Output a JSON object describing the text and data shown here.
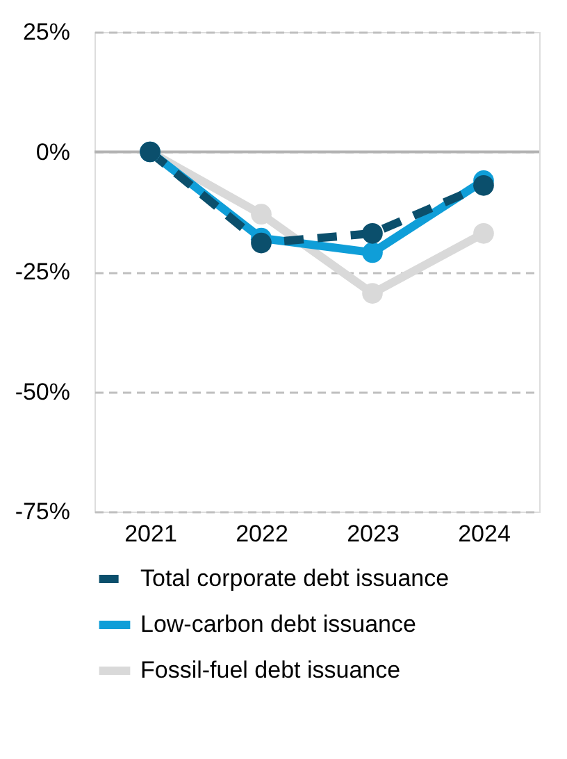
{
  "chart_data": {
    "type": "line",
    "categories": [
      "2021",
      "2022",
      "2023",
      "2024"
    ],
    "series": [
      {
        "name": "Total corporate debt issuance",
        "color": "#0b4f6c",
        "values": [
          0,
          -19,
          -17,
          -7
        ],
        "line_style": "dashed"
      },
      {
        "name": "Low-carbon debt issuance",
        "color": "#0f9ed8",
        "values": [
          0,
          -18,
          -21,
          -6
        ]
      },
      {
        "name": "Fossil-fuel debt issuance",
        "color": "#d9d9d9",
        "values": [
          0,
          -13,
          -29.5,
          -17
        ]
      }
    ],
    "ylim": [
      -75,
      25
    ],
    "yticks": [
      {
        "value": 25,
        "label": "25%"
      },
      {
        "value": 0,
        "label": "0%"
      },
      {
        "value": -25,
        "label": "-25%"
      },
      {
        "value": -50,
        "label": "-50%"
      },
      {
        "value": -75,
        "label": "-75%"
      }
    ],
    "grid": "y",
    "legend": "bottom",
    "marker": "circle",
    "line_style": "solid",
    "ref_lines": [
      {
        "axis": "y",
        "value": 0,
        "color": "#b3b3b3",
        "line_style": "solid"
      }
    ]
  }
}
